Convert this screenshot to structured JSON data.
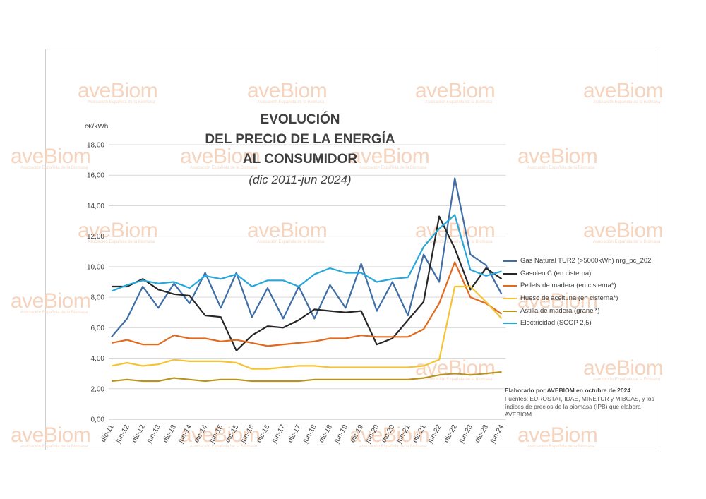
{
  "watermark": {
    "brand": "aveBiom",
    "tagline": "Asociación Española de la Biomasa"
  },
  "chart_data": {
    "type": "line",
    "title_lines": [
      "EVOLUCIÓN",
      "DEL PRECIO DE LA ENERGÍA",
      "AL CONSUMIDOR"
    ],
    "subtitle": "(dic 2011-jun 2024)",
    "ylabel": "c€/kWh",
    "ylim": [
      0,
      18
    ],
    "yticks": [
      "0,00",
      "2,00",
      "4,00",
      "6,00",
      "8,00",
      "10,00",
      "12,00",
      "14,00",
      "16,00",
      "18,00"
    ],
    "grid": true,
    "legend_position": "right",
    "tick_labels": [
      "dic-11",
      "jun-12",
      "dic-12",
      "jun-13",
      "dic-13",
      "jun-14",
      "dic-14",
      "jun-15",
      "dic-15",
      "jun-16",
      "dic-16",
      "jun-17",
      "dic-17",
      "jun-18",
      "dic-18",
      "jun-19",
      "dic-19",
      "jun-20",
      "dic-20",
      "jun-21",
      "dic-21",
      "jun-22",
      "dic-22",
      "jun-23",
      "dic-23",
      "jun-24"
    ],
    "series": [
      {
        "name": "Gas Natural TUR2 (>5000kWh) nrg_pc_202",
        "color": "#3f6ea6",
        "values": [
          5.4,
          6.6,
          8.7,
          7.3,
          8.9,
          7.6,
          9.6,
          7.3,
          9.6,
          6.7,
          8.6,
          6.6,
          8.7,
          6.6,
          8.8,
          7.3,
          10.2,
          7.1,
          9.0,
          6.8,
          10.8,
          9.0,
          15.8,
          10.8,
          10.1,
          8.2
        ]
      },
      {
        "name": "Gasoleo C   (en cisterna)",
        "color": "#262626",
        "values": [
          8.7,
          8.7,
          9.2,
          8.5,
          8.2,
          8.1,
          6.8,
          6.7,
          4.5,
          5.5,
          6.1,
          6.0,
          6.5,
          7.2,
          7.1,
          7.0,
          7.1,
          4.9,
          5.3,
          6.5,
          7.7,
          13.3,
          11.2,
          8.5,
          9.9,
          9.2
        ]
      },
      {
        "name": "Pellets de madera (en cisterna*)",
        "color": "#e26a1f",
        "values": [
          5.0,
          5.2,
          4.9,
          4.9,
          5.5,
          5.3,
          5.3,
          5.1,
          5.2,
          5.0,
          4.8,
          4.9,
          5.0,
          5.1,
          5.3,
          5.3,
          5.5,
          5.4,
          5.4,
          5.4,
          5.9,
          7.6,
          10.3,
          8.0,
          7.6,
          6.9
        ]
      },
      {
        "name": "Hueso de aceituna (en cisterna*)",
        "color": "#f5c334",
        "values": [
          3.5,
          3.7,
          3.5,
          3.6,
          3.9,
          3.8,
          3.8,
          3.8,
          3.7,
          3.3,
          3.3,
          3.4,
          3.5,
          3.5,
          3.4,
          3.4,
          3.4,
          3.4,
          3.4,
          3.4,
          3.5,
          3.9,
          8.7,
          8.7,
          7.7,
          6.6
        ]
      },
      {
        "name": "Astilla de madera (granel*)",
        "color": "#b8941f",
        "values": [
          2.5,
          2.6,
          2.5,
          2.5,
          2.7,
          2.6,
          2.5,
          2.6,
          2.6,
          2.5,
          2.5,
          2.5,
          2.5,
          2.6,
          2.6,
          2.6,
          2.6,
          2.6,
          2.6,
          2.6,
          2.7,
          2.9,
          3.0,
          2.9,
          3.0,
          3.1
        ]
      },
      {
        "name": "Electricidad (SCOP 2,5)",
        "color": "#27a8dc",
        "values": [
          8.4,
          8.8,
          9.1,
          8.9,
          9.0,
          8.6,
          9.4,
          9.2,
          9.5,
          8.7,
          9.1,
          9.1,
          8.7,
          9.5,
          9.9,
          9.6,
          9.6,
          9.0,
          9.2,
          9.3,
          11.3,
          12.5,
          13.4,
          9.8,
          9.4,
          9.7
        ]
      }
    ]
  },
  "credits": {
    "line1": "Elaborado por AVEBIOM en octubre de 2024",
    "line2": "Fuentes: EUROSTAT, IDAE, MINETUR y MIBGAS, y los",
    "line3": "índices de precios de la biomasa (IPB) que elabora",
    "line4": "AVEBIOM"
  }
}
